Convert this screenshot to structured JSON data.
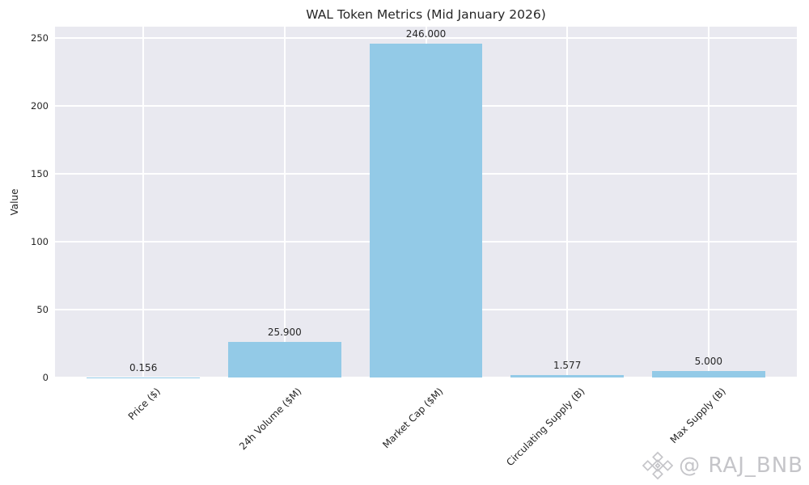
{
  "title": "WAL Token Metrics (Mid January 2026)",
  "watermark": {
    "handle": "@ RAJ_BNB",
    "logo_icon": "binance-diamond-icon",
    "color": "#c5c5c9"
  },
  "chart_data": {
    "type": "bar",
    "title": "WAL Token Metrics (Mid January 2026)",
    "categories": [
      "Price ($)",
      "24h Volume ($M)",
      "Market Cap ($M)",
      "Circulating Supply (B)",
      "Max Supply (B)"
    ],
    "values": [
      0.156,
      25.9,
      246.0,
      1.577,
      5.0
    ],
    "value_labels": [
      "0.156",
      "25.900",
      "246.000",
      "1.577",
      "5.000"
    ],
    "xlabel": "",
    "ylabel": "Value",
    "ylim": [
      0,
      258.3
    ],
    "yticks": [
      0,
      50,
      100,
      150,
      200,
      250
    ],
    "grid": true,
    "legend": false,
    "x_tick_rotation_deg": 45,
    "bar_color": "#93cae7",
    "plot_bg_color": "#e9e9f0",
    "figure_bg_color": "#ffffff",
    "grid_color": "#ffffff",
    "text_color": "#262626"
  }
}
